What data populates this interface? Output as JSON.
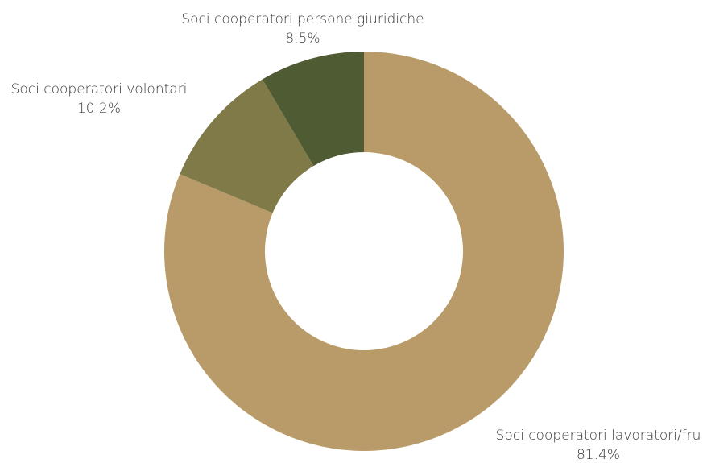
{
  "chart_data": {
    "type": "pie",
    "variant": "donut",
    "slices": [
      {
        "label": "Soci cooperatori lavoratori/fru",
        "value": 81.4,
        "value_label": "81.4%",
        "color": "#b89b68"
      },
      {
        "label": "Soci cooperatori volontari",
        "value": 10.2,
        "value_label": "10.2%",
        "color": "#807a48"
      },
      {
        "label": "Soci cooperatori persone giuridiche",
        "value": 8.5,
        "value_label": "8.5%",
        "color": "#4f5b32"
      }
    ],
    "start_angle": "12 o'clock",
    "direction": "clockwise",
    "legend": "none"
  }
}
